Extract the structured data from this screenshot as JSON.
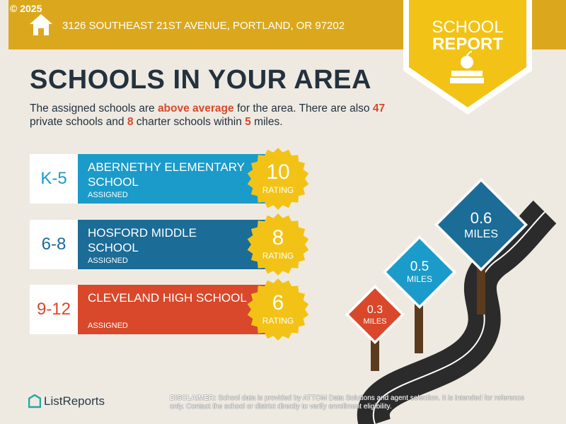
{
  "copyright": "© 2025",
  "header": {
    "address": "3126 SOUTHEAST 21ST AVENUE, PORTLAND, OR 97202"
  },
  "badge": {
    "line1": "SCHOOL",
    "line2": "REPORT"
  },
  "title": "SCHOOLS IN YOUR AREA",
  "intro": [
    "The assigned schools are ",
    "above average",
    " for the area. There are also ",
    "47",
    " private schools and ",
    "8",
    " charter schools within ",
    "5",
    " miles."
  ],
  "schools": [
    {
      "grades": "K-5",
      "name": "ABERNETHY ELEMENTARY SCHOOL",
      "status": "ASSIGNED",
      "rating": 10,
      "rating_label": "RATING",
      "color": "#1b9bc9"
    },
    {
      "grades": "6-8",
      "name": "HOSFORD MIDDLE SCHOOL",
      "status": "ASSIGNED",
      "rating": 8,
      "rating_label": "RATING",
      "color": "#1b6c97"
    },
    {
      "grades": "9-12",
      "name": "CLEVELAND HIGH SCHOOL",
      "status": "ASSIGNED",
      "rating": 6,
      "rating_label": "RATING",
      "color": "#d9482a"
    }
  ],
  "signs": [
    {
      "distance": 0.3,
      "unit": "MILES",
      "color": "#d9482a"
    },
    {
      "distance": 0.5,
      "unit": "MILES",
      "color": "#1b9bc9"
    },
    {
      "distance": 0.6,
      "unit": "MILES",
      "color": "#1b6c97"
    }
  ],
  "footer": {
    "logo": "ListReports",
    "disclaimer_label": "DISCLAIMER:",
    "disclaimer": "School data is provided by ATTOM Data Solutions and agent selection. It is intended for reference only. Contact the school or district directly to verify enrollment eligibility."
  }
}
